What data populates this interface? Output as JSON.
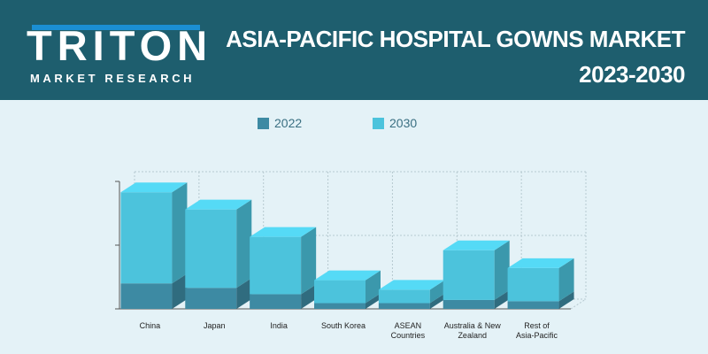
{
  "header": {
    "logo_word_left": "TRIT",
    "logo_word_o": "O",
    "logo_word_right": "N",
    "logo_tagline": "MARKET RESEARCH",
    "title_line1": "ASIA-PACIFIC HOSPITAL GOWNS  MARKET",
    "title_line2": "2023-2030",
    "background_color": "#1e5e6e",
    "accent_color": "#1b8fd3"
  },
  "chart_data": {
    "type": "bar",
    "subtype": "stacked-3d",
    "title": "ASIA-PACIFIC HOSPITAL GOWNS  MARKET 2023-2030",
    "xlabel": "",
    "ylabel": "",
    "categories": [
      "China",
      "Japan",
      "India",
      "South Korea",
      "ASEAN Countries",
      "Australia & New Zealand",
      "Rest of Asia-Pacific"
    ],
    "categories_display": [
      [
        "China"
      ],
      [
        "Japan"
      ],
      [
        "India"
      ],
      [
        "South Korea"
      ],
      [
        "ASEAN",
        "Countries"
      ],
      [
        "Australia & New",
        "Zealand"
      ],
      [
        "Rest of",
        "Asia-Pacific"
      ]
    ],
    "series": [
      {
        "name": "2022",
        "color": "#3d8aa3",
        "values": [
          40,
          33,
          23,
          9,
          9,
          14,
          12
        ]
      },
      {
        "name": "2030",
        "color": "#4cc3dc",
        "values": [
          143,
          123,
          90,
          36,
          21,
          78,
          52
        ]
      }
    ],
    "ylim": [
      0,
      200
    ],
    "legend_position": "top",
    "grid": true
  }
}
